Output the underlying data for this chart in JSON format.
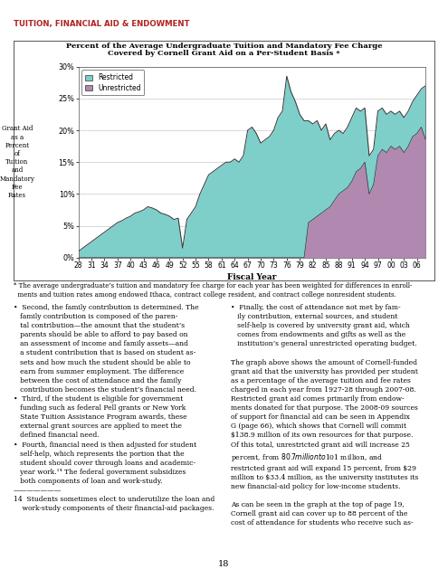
{
  "title_line1": "Percent of the Average Undergraduate Tuition and Mandatory Fee Charge",
  "title_line2": "Covered by Cornell Grant Aid on a Per-Student Basis *",
  "xlabel": "Fiscal Year",
  "header": "TUITION, FINANCIAL AID & ENDOWMENT",
  "footnote": "* The average undergraduate’s tuition and mandatory fee charge for each year has been weighted for differences in enroll-\n  ments and tuition rates among endowed Ithaca, contract college resident, and contract college nonresident students.",
  "body_text_left": "  •  Second, the ‘family contribution’ is determined. The\n     family contribution is composed of the paren-\n     tal contribution—the amount that the student’s\n     parents should be able to afford to pay based on\n     an assessment of income and family assets—and\n     a student contribution that is based on student as-\n     sets and how much the student should be able to\n     earn from summer employment. The difference\n     between the cost of attendance and the family\n     contribution becomes the student’s financial need.\n  •  Third, if the student is eligible for government\n     funding such as federal Pell grants or New York\n     State Tuition Assistance Program awards, these\n     external grant sources are applied to meet the\n     defined financial need.\n  •  Fourth, financial need is then adjusted for student\n     self-help, which represents the portion that the\n     student should cover through loans and academic-\n     year work.¹⁴ The federal government subsidizes\n     both components of loan and work-study.\n\n14   Students sometimes elect to underutilize the loan and\n     work-study components of their financial-aid packages.",
  "body_text_right": "  •  Finally, the cost of attendance not met by fam-\n     ily contribution, external sources, and student\n     self-help is covered by university grant aid, which\n     comes from endowments and gifts as well as the\n     institution’s general unrestricted operating budget.\n\n     The graph above shows the amount of Cornell-funded\n     grant aid that the university has provided per student\n     as a percentage of the average tuition and fee rates\n     charged in each year from 1927-28 through 2007-08.\n     Restricted grant aid comes primarily from endow-\n     ments donated for that purpose. The 2008-09 sources\n     of support for financial aid can be seen in Appendix\n     G (page 66), which shows that Cornell will commit\n     $138.9 million of its own resources for that purpose.\n     Of this total, unrestricted grant aid will increase 25\n     percent, from $80.7 million to $101 million, and\n     restricted grant aid will expand 15 percent, from $29\n     million to $33.4 million, as the university institutes its\n     new financial-aid policy for low-income students.\n\n     As can be seen in the graph at the top of page 19,\n     Cornell grant aid can cover up to 88 percent of the\n     cost of attendance for students who receive such as-",
  "total_values": [
    1.0,
    1.5,
    2.0,
    2.5,
    3.0,
    3.5,
    4.0,
    4.5,
    5.0,
    5.5,
    5.8,
    6.2,
    6.5,
    7.0,
    7.2,
    7.5,
    8.0,
    7.8,
    7.5,
    7.0,
    6.8,
    6.5,
    6.0,
    6.2,
    1.5,
    6.0,
    7.0,
    8.0,
    10.0,
    11.5,
    13.0,
    13.5,
    14.0,
    14.5,
    15.0,
    15.0,
    15.5,
    15.0,
    16.0,
    20.0,
    20.5,
    19.5,
    18.0,
    18.5,
    19.0,
    20.0,
    22.0,
    23.0,
    28.5,
    26.0,
    24.5,
    22.5,
    21.5,
    21.5,
    21.0,
    21.5,
    20.0,
    21.0,
    18.5,
    19.5,
    20.0,
    19.5,
    20.5,
    22.0,
    23.5,
    23.0,
    23.5,
    16.0,
    17.0,
    23.0,
    23.5,
    22.5,
    23.0,
    22.5,
    23.0,
    22.0,
    23.0,
    24.5,
    25.5,
    26.5,
    27.0
  ],
  "unrestricted_values": [
    0.0,
    0.0,
    0.0,
    0.0,
    0.0,
    0.0,
    0.0,
    0.0,
    0.0,
    0.0,
    0.0,
    0.0,
    0.0,
    0.0,
    0.0,
    0.0,
    0.0,
    0.0,
    0.0,
    0.0,
    0.0,
    0.0,
    0.0,
    0.0,
    0.0,
    0.0,
    0.0,
    0.0,
    0.0,
    0.0,
    0.0,
    0.0,
    0.0,
    0.0,
    0.0,
    0.0,
    0.0,
    0.0,
    0.0,
    0.0,
    0.0,
    0.0,
    0.0,
    0.0,
    0.0,
    0.0,
    0.0,
    0.0,
    0.0,
    0.0,
    0.0,
    0.0,
    0.0,
    5.5,
    6.0,
    6.5,
    7.0,
    7.5,
    8.0,
    9.0,
    10.0,
    10.5,
    11.0,
    12.0,
    13.5,
    14.0,
    15.0,
    10.0,
    11.5,
    16.0,
    17.0,
    16.5,
    17.5,
    17.0,
    17.5,
    16.5,
    17.5,
    19.0,
    19.5,
    20.5,
    18.5
  ],
  "color_restricted": "#7ECECA",
  "color_unrestricted": "#B088B0",
  "color_header": "#B22222",
  "yticks": [
    0,
    5,
    10,
    15,
    20,
    25,
    30
  ],
  "xtick_labels": [
    "28",
    "31",
    "34",
    "37",
    "40",
    "43",
    "46",
    "49",
    "52",
    "55",
    "58",
    "61",
    "64",
    "67",
    "70",
    "73",
    "76",
    "79",
    "82",
    "85",
    "88",
    "91",
    "94",
    "97",
    "00",
    "03",
    "06"
  ],
  "xtick_positions": [
    0,
    3,
    6,
    9,
    12,
    15,
    18,
    21,
    24,
    27,
    30,
    33,
    36,
    39,
    42,
    45,
    48,
    51,
    54,
    57,
    60,
    63,
    66,
    69,
    72,
    75,
    78
  ]
}
